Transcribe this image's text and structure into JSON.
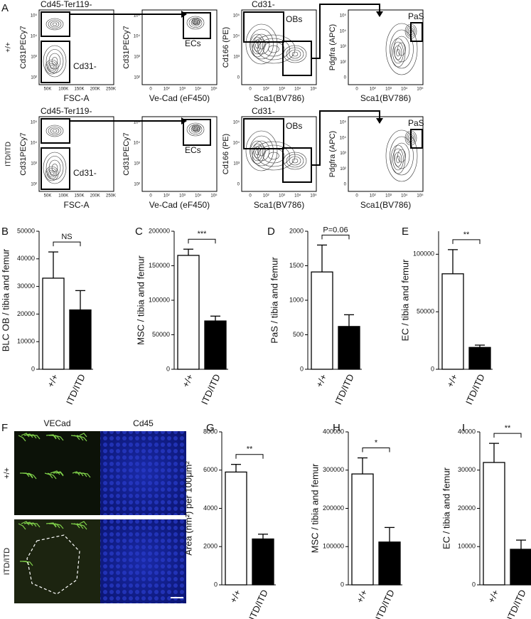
{
  "panel_labels": [
    "A",
    "B",
    "C",
    "D",
    "E",
    "F",
    "G",
    "H",
    "I"
  ],
  "flow": {
    "row_labels": [
      "+/+",
      "ITD/ITD"
    ],
    "columns": [
      {
        "x_label": "FSC-A",
        "y_label": "Cd31PECy7",
        "xticks": [
          "50K",
          "100K",
          "150K",
          "200K",
          "250K"
        ],
        "yticks": [
          "10²",
          "10³",
          "10⁴",
          "10⁵"
        ]
      },
      {
        "x_label": "Ve-Cad (eF450)",
        "y_label": "Cd31PECy7",
        "xticks": [
          "0",
          "10²",
          "10³",
          "10⁴",
          "10⁵"
        ],
        "yticks": [
          "10²",
          "10³",
          "10⁴",
          "10⁵"
        ]
      },
      {
        "x_label": "Sca1(BV786)",
        "y_label": "Cd166 (PE)",
        "xticks": [
          "0",
          "10²",
          "10³",
          "10⁴",
          "10⁵"
        ],
        "yticks": [
          "0",
          "10³",
          "10⁴",
          "10⁵"
        ]
      },
      {
        "x_label": "Sca1(BV786)",
        "y_label": "Pdgfra (APC)",
        "xticks": [
          "0",
          "10²",
          "10³",
          "10⁴",
          "10⁵"
        ],
        "yticks": [
          "0",
          "10²",
          "10³",
          "10⁴",
          "10⁵"
        ]
      }
    ],
    "plots": [
      [
        {
          "title": "Cd45-Ter119-",
          "gate": "Cd31-"
        },
        {
          "gate": "ECs"
        },
        {
          "title": "Cd31-",
          "gate": "OBs"
        },
        {
          "gate": "PaS"
        }
      ],
      [
        {
          "title": "Cd45-Ter119-",
          "gate": "Cd31-"
        },
        {
          "gate": "ECs"
        },
        {
          "title": "Cd31-",
          "gate": "OBs"
        },
        {
          "gate": "PaS"
        }
      ]
    ]
  },
  "micrograph": {
    "columns": [
      "VECad",
      "Cd45"
    ],
    "rows": [
      "+/+",
      "ITD/ITD"
    ]
  },
  "chart_data": [
    {
      "type": "bar",
      "y_label": "BLC OB / tibia and femur",
      "categories": [
        "+/+",
        "ITD/ITD"
      ],
      "colors": [
        "#ffffff",
        "#000000"
      ],
      "values": [
        33000,
        21500
      ],
      "errors": [
        9500,
        7000
      ],
      "ylim": [
        0,
        50000
      ],
      "yticks": [
        0,
        10000,
        20000,
        30000,
        40000,
        50000
      ],
      "significance": "NS"
    },
    {
      "type": "bar",
      "y_label": "MSC / tibia and femur",
      "categories": [
        "+/+",
        "ITD/ITD"
      ],
      "colors": [
        "#ffffff",
        "#000000"
      ],
      "values": [
        165000,
        70000
      ],
      "errors": [
        9000,
        7000
      ],
      "ylim": [
        0,
        200000
      ],
      "yticks": [
        0,
        50000,
        100000,
        150000,
        200000
      ],
      "significance": "***"
    },
    {
      "type": "bar",
      "y_label": "PaS / tibia and femur",
      "categories": [
        "+/+",
        "ITD/ITD"
      ],
      "colors": [
        "#ffffff",
        "#000000"
      ],
      "values": [
        1410,
        620
      ],
      "errors": [
        390,
        170
      ],
      "ylim": [
        0,
        2000
      ],
      "yticks": [
        0,
        500,
        1000,
        1500,
        2000
      ],
      "significance": "P=0.06"
    },
    {
      "type": "bar",
      "y_label": "EC / tibia and femur",
      "categories": [
        "+/+",
        "ITD/ITD"
      ],
      "colors": [
        "#ffffff",
        "#000000"
      ],
      "values": [
        83000,
        19000
      ],
      "errors": [
        21000,
        2000
      ],
      "ylim": [
        0,
        120000
      ],
      "yticks": [
        0,
        50000,
        100000
      ],
      "significance": "**"
    },
    {
      "type": "bar",
      "y_label": "Area (nm²) per 100μm²",
      "categories": [
        "+/+",
        "ITD/ITD"
      ],
      "colors": [
        "#ffffff",
        "#000000"
      ],
      "values": [
        5900,
        2400
      ],
      "errors": [
        400,
        250
      ],
      "ylim": [
        0,
        8000
      ],
      "yticks": [
        0,
        2000,
        4000,
        6000,
        8000
      ],
      "significance": "**"
    },
    {
      "type": "bar",
      "y_label": "MSC / tibia and femur",
      "categories": [
        "+/+",
        "ITD/ITD"
      ],
      "colors": [
        "#ffffff",
        "#000000"
      ],
      "values": [
        290000,
        112000
      ],
      "errors": [
        42000,
        38000
      ],
      "ylim": [
        0,
        400000
      ],
      "yticks": [
        0,
        100000,
        200000,
        300000,
        400000
      ],
      "significance": "*"
    },
    {
      "type": "bar",
      "y_label": "EC / tibia and femur",
      "categories": [
        "+/+",
        "ITD/ITD"
      ],
      "colors": [
        "#ffffff",
        "#000000"
      ],
      "values": [
        32000,
        9300
      ],
      "errors": [
        5000,
        2400
      ],
      "ylim": [
        0,
        40000
      ],
      "yticks": [
        0,
        10000,
        20000,
        30000,
        40000
      ],
      "significance": "**"
    }
  ]
}
